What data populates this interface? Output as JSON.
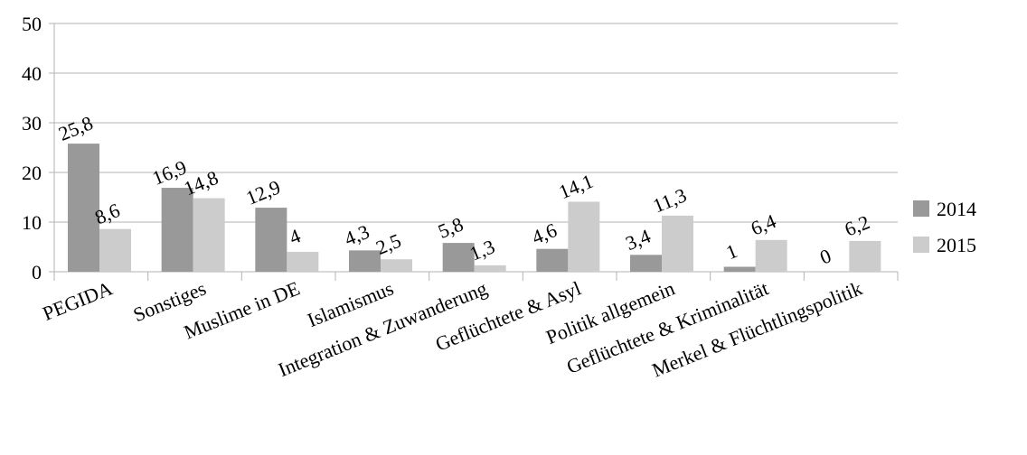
{
  "chart_data": {
    "type": "bar",
    "title": "",
    "xlabel": "",
    "ylabel": "",
    "ylim": [
      0,
      50
    ],
    "yticks": [
      "0",
      "10",
      "20",
      "30",
      "40",
      "50"
    ],
    "grid": true,
    "legend_position": "right",
    "categories": [
      "PEGIDA",
      "Sonstiges",
      "Muslime in DE",
      "Islamismus",
      "Integration & Zuwanderung",
      "Geflüchtete & Asyl",
      "Politik allgemein",
      "Geflüchtete & Kriminalität",
      "Merkel & Flüchtlingspolitik"
    ],
    "series": [
      {
        "name": "2014",
        "color": "#999999",
        "values": [
          25.8,
          16.9,
          12.9,
          4.3,
          5.8,
          4.6,
          3.4,
          1,
          0
        ],
        "labels": [
          "25,8",
          "16,9",
          "12,9",
          "4,3",
          "5,8",
          "4,6",
          "3,4",
          "1",
          "0"
        ]
      },
      {
        "name": "2015",
        "color": "#cccccc",
        "values": [
          8.6,
          14.8,
          4,
          2.5,
          1.3,
          14.1,
          11.3,
          6.4,
          6.2
        ],
        "labels": [
          "8,6",
          "14,8",
          "4",
          "2,5",
          "1,3",
          "14,1",
          "11,3",
          "6,4",
          "6,2"
        ]
      }
    ]
  }
}
